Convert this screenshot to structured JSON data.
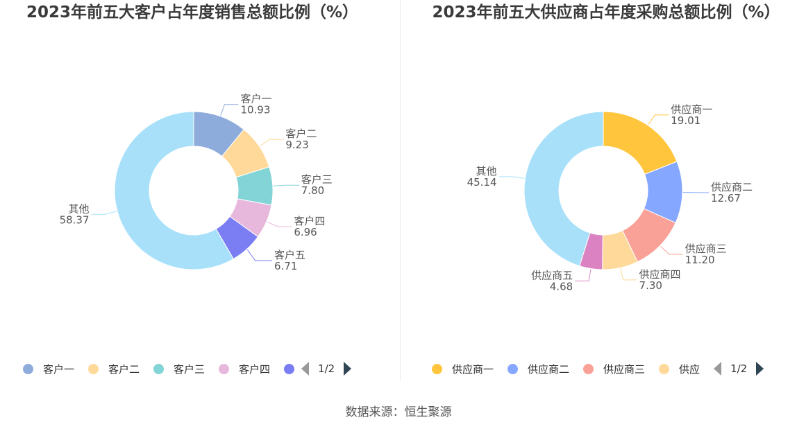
{
  "chart_data": [
    {
      "type": "pie",
      "title": "2023年前五大客户占年度销售总额比例（%）",
      "categories": [
        "客户一",
        "客户二",
        "客户三",
        "客户四",
        "客户五",
        "其他"
      ],
      "values": [
        10.93,
        9.23,
        7.8,
        6.96,
        6.71,
        58.37
      ],
      "value_labels": [
        "10.93",
        "9.23",
        "7.80",
        "6.96",
        "6.71",
        "58.37"
      ],
      "colors": [
        "#8eacdb",
        "#fed999",
        "#83d4d6",
        "#e8b8dc",
        "#7a7ef2",
        "#a8e0fa"
      ],
      "legend": {
        "position": "bottom",
        "visible_items": [
          "客户一",
          "客户二",
          "客户三",
          "客户四",
          ""
        ],
        "page": "1/2"
      }
    },
    {
      "type": "pie",
      "title": "2023年前五大供应商占年度采购总额比例（%）",
      "categories": [
        "供应商一",
        "供应商二",
        "供应商三",
        "供应商四",
        "供应商五",
        "其他"
      ],
      "values": [
        19.01,
        12.67,
        11.2,
        7.3,
        4.68,
        45.14
      ],
      "value_labels": [
        "19.01",
        "12.67",
        "11.20",
        "7.30",
        "4.68",
        "45.14"
      ],
      "colors": [
        "#ffc53d",
        "#86a7ff",
        "#f9a197",
        "#fed999",
        "#db83c2",
        "#a8e0fa"
      ],
      "legend": {
        "position": "bottom",
        "visible_items": [
          "供应商一",
          "供应商二",
          "供应商三",
          "供应"
        ],
        "page": "1/2"
      }
    }
  ],
  "source": "数据来源：恒生聚源"
}
